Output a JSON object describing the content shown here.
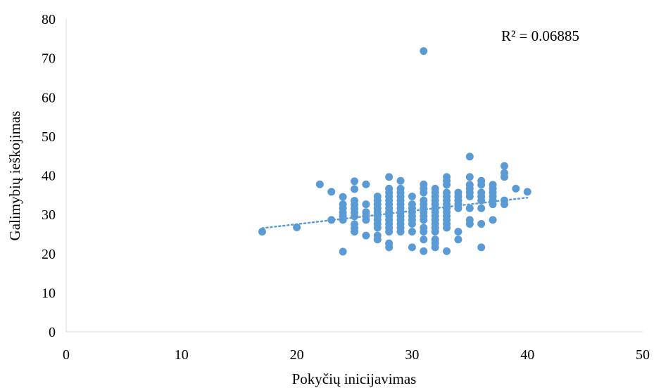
{
  "chart_data": {
    "type": "scatter",
    "title": "",
    "xlabel": "Pokyčių inicijavimas",
    "ylabel": "Galimybių ieškojimas",
    "xlim": [
      0,
      50
    ],
    "ylim": [
      0,
      80
    ],
    "x_ticks": [
      "0",
      "10",
      "20",
      "30",
      "40",
      "50"
    ],
    "y_ticks": [
      "0",
      "10",
      "20",
      "30",
      "40",
      "50",
      "60",
      "70",
      "80"
    ],
    "grid": false,
    "legend": "none",
    "marker_color": "#5B9BD5",
    "trendline": {
      "type": "linear",
      "x_range": [
        17,
        40
      ],
      "start_y": 26.5,
      "end_y": 34.3,
      "style": "dotted",
      "color": "#5B9BD5"
    },
    "annotation": "R² = 0.06885",
    "series": [
      {
        "points": [
          [
            17,
            25.6
          ],
          [
            20,
            26.7
          ],
          [
            22,
            37.7
          ],
          [
            23,
            35.8
          ],
          [
            23,
            28.6
          ],
          [
            24,
            34.5
          ],
          [
            24,
            32.6
          ],
          [
            24,
            31.6
          ],
          [
            24,
            30.5
          ],
          [
            24,
            29.6
          ],
          [
            24,
            28.6
          ],
          [
            24,
            20.5
          ],
          [
            25,
            38.5
          ],
          [
            25,
            36.5
          ],
          [
            25,
            33.5
          ],
          [
            25,
            32.5
          ],
          [
            25,
            31.5
          ],
          [
            25,
            30.5
          ],
          [
            25,
            29.5
          ],
          [
            25,
            27.5
          ],
          [
            25,
            26.5
          ],
          [
            25,
            25.6
          ],
          [
            26,
            37.7
          ],
          [
            26,
            32.6
          ],
          [
            26,
            30.6
          ],
          [
            26,
            29.6
          ],
          [
            26,
            28.6
          ],
          [
            26,
            24.6
          ],
          [
            27,
            34.6
          ],
          [
            27,
            33.6
          ],
          [
            27,
            32.6
          ],
          [
            27,
            31.6
          ],
          [
            27,
            30.6
          ],
          [
            27,
            29.6
          ],
          [
            27,
            28.6
          ],
          [
            27,
            27.6
          ],
          [
            27,
            26.6
          ],
          [
            27,
            24.6
          ],
          [
            27,
            23.6
          ],
          [
            28,
            39.6
          ],
          [
            28,
            36.6
          ],
          [
            28,
            35.6
          ],
          [
            28,
            34.6
          ],
          [
            28,
            33.6
          ],
          [
            28,
            32.6
          ],
          [
            28,
            31.6
          ],
          [
            28,
            30.6
          ],
          [
            28,
            29.6
          ],
          [
            28,
            28.6
          ],
          [
            28,
            27.6
          ],
          [
            28,
            26.6
          ],
          [
            28,
            25.6
          ],
          [
            28,
            22.6
          ],
          [
            28,
            21.6
          ],
          [
            29,
            38.6
          ],
          [
            29,
            36.6
          ],
          [
            29,
            35.6
          ],
          [
            29,
            34.6
          ],
          [
            29,
            33.6
          ],
          [
            29,
            32.6
          ],
          [
            29,
            31.6
          ],
          [
            29,
            30.6
          ],
          [
            29,
            29.6
          ],
          [
            29,
            28.6
          ],
          [
            29,
            27.6
          ],
          [
            29,
            26.6
          ],
          [
            29,
            25.6
          ],
          [
            30,
            34.6
          ],
          [
            30,
            32.6
          ],
          [
            30,
            31.6
          ],
          [
            30,
            30.6
          ],
          [
            30,
            29.6
          ],
          [
            30,
            28.6
          ],
          [
            30,
            27.6
          ],
          [
            30,
            25.6
          ],
          [
            30,
            21.6
          ],
          [
            31,
            71.8
          ],
          [
            31,
            37.7
          ],
          [
            31,
            36.6
          ],
          [
            31,
            35.6
          ],
          [
            31,
            33.6
          ],
          [
            31,
            32.6
          ],
          [
            31,
            31.6
          ],
          [
            31,
            30.6
          ],
          [
            31,
            29.6
          ],
          [
            31,
            28.6
          ],
          [
            31,
            26.6
          ],
          [
            31,
            25.6
          ],
          [
            31,
            23.6
          ],
          [
            31,
            20.6
          ],
          [
            32,
            36.6
          ],
          [
            32,
            35.6
          ],
          [
            32,
            34.6
          ],
          [
            32,
            33.6
          ],
          [
            32,
            32.6
          ],
          [
            32,
            31.6
          ],
          [
            32,
            30.6
          ],
          [
            32,
            29.6
          ],
          [
            32,
            28.6
          ],
          [
            32,
            27.6
          ],
          [
            32,
            26.6
          ],
          [
            32,
            25.6
          ],
          [
            32,
            23.6
          ],
          [
            32,
            22.6
          ],
          [
            32,
            21.6
          ],
          [
            33,
            39.6
          ],
          [
            33,
            38.6
          ],
          [
            33,
            37.6
          ],
          [
            33,
            35.6
          ],
          [
            33,
            34.6
          ],
          [
            33,
            33.6
          ],
          [
            33,
            32.6
          ],
          [
            33,
            31.6
          ],
          [
            33,
            30.6
          ],
          [
            33,
            29.6
          ],
          [
            33,
            28.6
          ],
          [
            33,
            27.6
          ],
          [
            33,
            26.6
          ],
          [
            33,
            20.6
          ],
          [
            34,
            35.6
          ],
          [
            34,
            34.6
          ],
          [
            34,
            33.6
          ],
          [
            34,
            32.6
          ],
          [
            34,
            31.6
          ],
          [
            34,
            25.6
          ],
          [
            34,
            23.6
          ],
          [
            35,
            44.8
          ],
          [
            35,
            39.6
          ],
          [
            35,
            37.6
          ],
          [
            35,
            36.6
          ],
          [
            35,
            35.6
          ],
          [
            35,
            34.6
          ],
          [
            35,
            31.6
          ],
          [
            35,
            28.6
          ],
          [
            35,
            27.6
          ],
          [
            36,
            38.6
          ],
          [
            36,
            37.6
          ],
          [
            36,
            35.6
          ],
          [
            36,
            34.6
          ],
          [
            36,
            33.6
          ],
          [
            36,
            31.6
          ],
          [
            36,
            27.6
          ],
          [
            36,
            21.6
          ],
          [
            37,
            37.6
          ],
          [
            37,
            36.6
          ],
          [
            37,
            35.6
          ],
          [
            37,
            34.6
          ],
          [
            37,
            33.6
          ],
          [
            37,
            32.6
          ],
          [
            37,
            28.6
          ],
          [
            38,
            42.4
          ],
          [
            38,
            40.6
          ],
          [
            38,
            39.6
          ],
          [
            38,
            33.6
          ],
          [
            38,
            32.6
          ],
          [
            39,
            36.6
          ],
          [
            40,
            35.8
          ]
        ]
      }
    ]
  }
}
